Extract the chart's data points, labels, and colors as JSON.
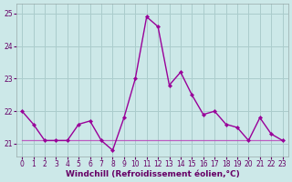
{
  "xlabel": "Windchill (Refroidissement éolien,°C)",
  "bg_color": "#cce8e8",
  "grid_color": "#aacccc",
  "line_color": "#990099",
  "trend_color": "#bb44bb",
  "ylim": [
    20.6,
    25.3
  ],
  "yticks": [
    21,
    22,
    23,
    24,
    25
  ],
  "xlim": [
    -0.5,
    23.5
  ],
  "xticks": [
    0,
    1,
    2,
    3,
    4,
    5,
    6,
    7,
    8,
    9,
    10,
    11,
    12,
    13,
    14,
    15,
    16,
    17,
    18,
    19,
    20,
    21,
    22,
    23
  ],
  "hours": [
    0,
    1,
    2,
    3,
    4,
    5,
    6,
    7,
    8,
    9,
    10,
    11,
    12,
    13,
    14,
    15,
    16,
    17,
    18,
    19,
    20,
    21,
    22,
    23
  ],
  "windchill": [
    22.0,
    21.6,
    21.1,
    21.1,
    21.1,
    21.6,
    21.7,
    21.1,
    20.8,
    21.8,
    23.0,
    24.9,
    24.6,
    22.8,
    23.2,
    22.5,
    21.9,
    22.0,
    21.6,
    21.5,
    21.1,
    21.8,
    21.3,
    21.1
  ],
  "trend": [
    21.1,
    21.1,
    21.1,
    21.1,
    21.1,
    21.1,
    21.1,
    21.1,
    21.1,
    21.1,
    21.1,
    21.1,
    21.1,
    21.1,
    21.1,
    21.1,
    21.1,
    21.1,
    21.1,
    21.1,
    21.1,
    21.1,
    21.1,
    21.1
  ],
  "tick_color": "#660066",
  "xlabel_color": "#660066",
  "xlabel_fontsize": 6.5,
  "tick_fontsize": 5.5
}
